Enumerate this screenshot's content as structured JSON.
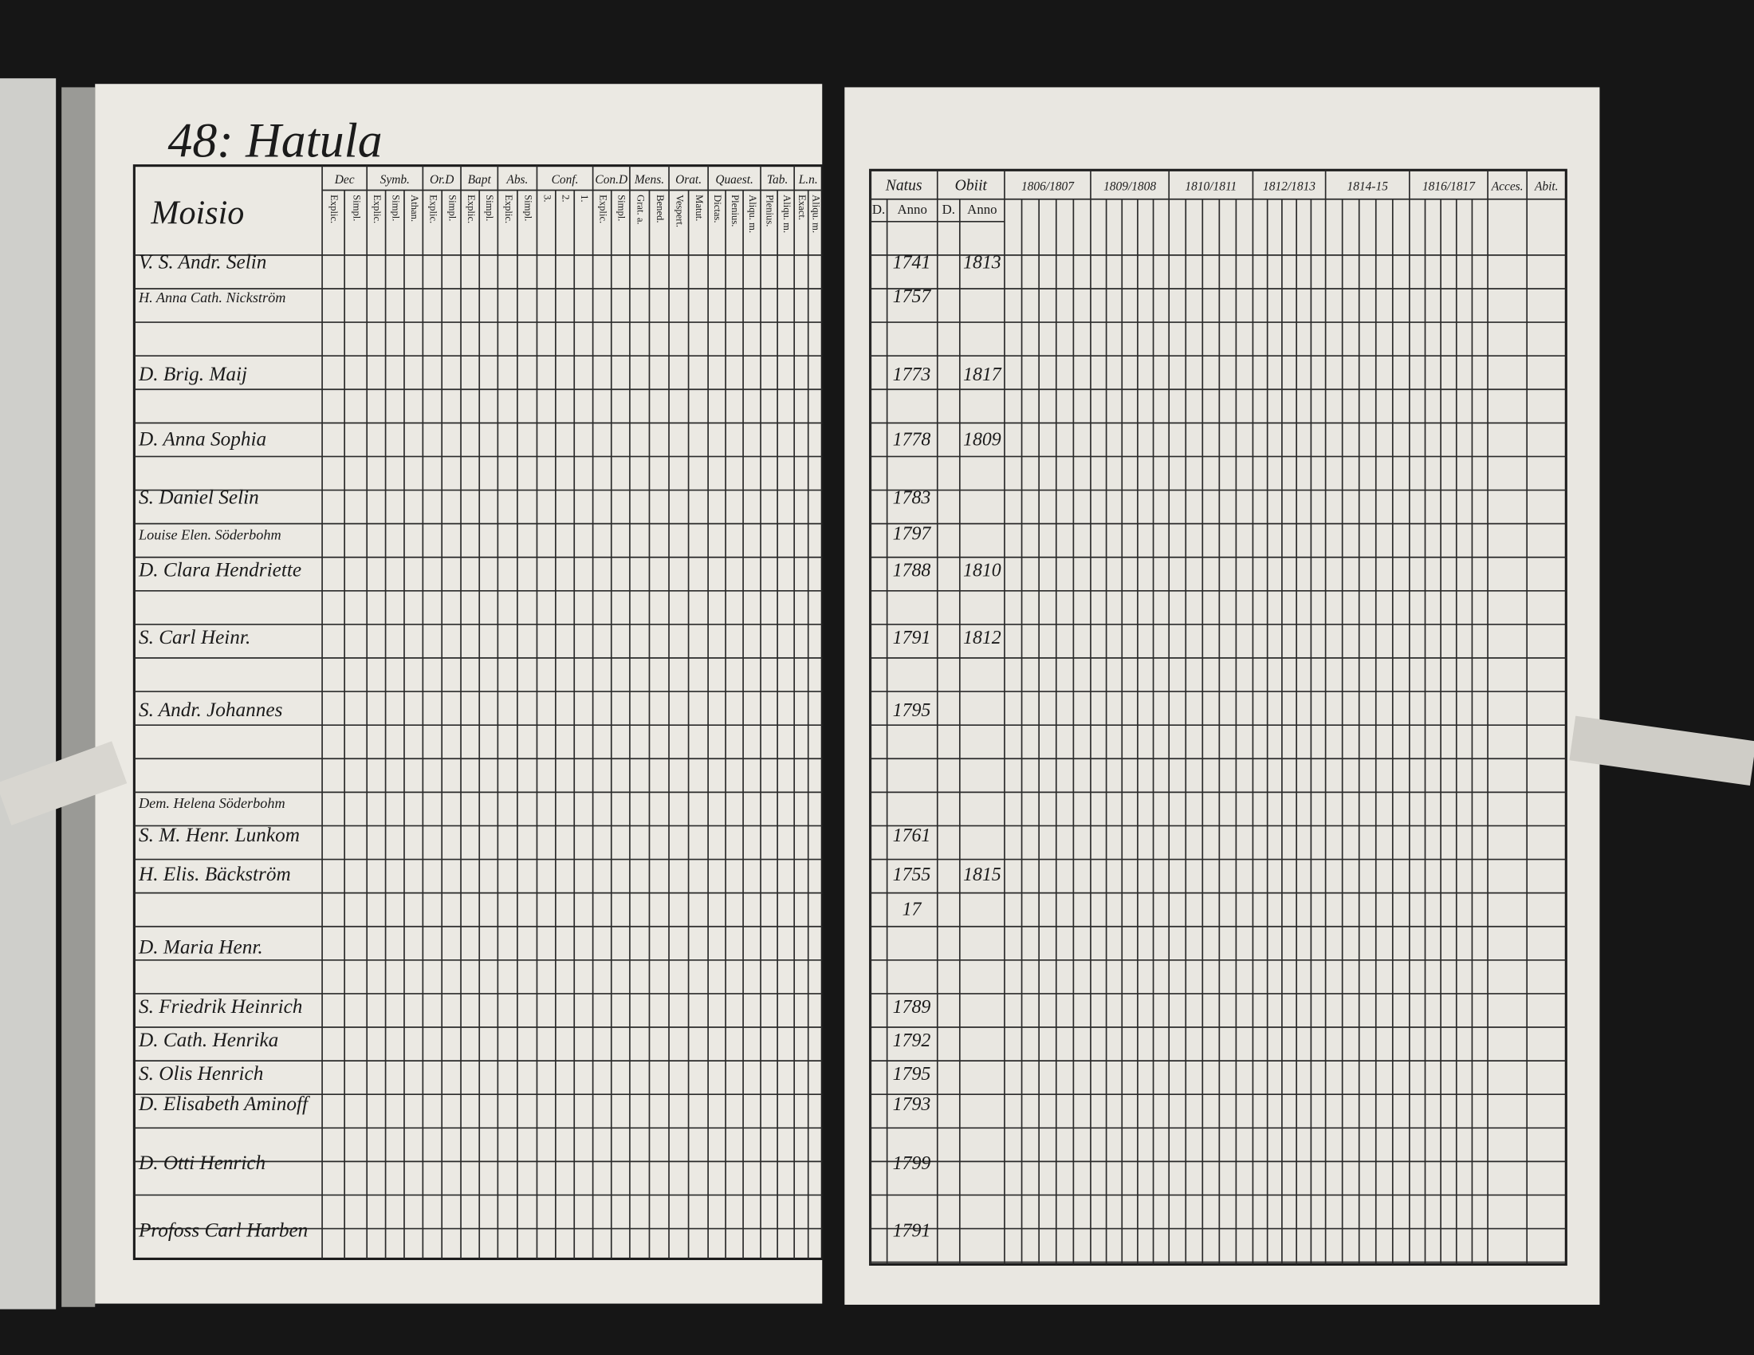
{
  "header": {
    "title": "48: Hatula"
  },
  "left_table": {
    "name_header": "Moisio",
    "columns": [
      {
        "label": "Dec",
        "sub": [
          "Explic.",
          "Simpl."
        ]
      },
      {
        "label": "Symb.",
        "sub": [
          "Explic.",
          "Simpl.",
          "Athan."
        ]
      },
      {
        "label": "Or.D",
        "sub": [
          "Explic.",
          "Simpl."
        ]
      },
      {
        "label": "Bapt",
        "sub": [
          "Explic.",
          "Simpl."
        ]
      },
      {
        "label": "Abs.",
        "sub": [
          "Explic.",
          "Simpl."
        ]
      },
      {
        "label": "Conf.",
        "sub": [
          "3.",
          "2.",
          "1."
        ]
      },
      {
        "label": "Con.D",
        "sub": [
          "Explic.",
          "Simpl."
        ]
      },
      {
        "label": "Mens.",
        "sub": [
          "Grat. a.",
          "Bened."
        ]
      },
      {
        "label": "Orat.",
        "sub": [
          "Vespert.",
          "Matut."
        ]
      },
      {
        "label": "Quaest.",
        "sub": [
          "Dictas.",
          "Plenius.",
          "Aliqu. m."
        ]
      },
      {
        "label": "Tab.",
        "sub": [
          "Plenius.",
          "Aliqu. m."
        ]
      },
      {
        "label": "L.n.",
        "sub": [
          "Exact.",
          "Aliqu. m."
        ]
      }
    ]
  },
  "right_table": {
    "columns": [
      {
        "label": "Natus",
        "sub": [
          "D.",
          "Anno"
        ]
      },
      {
        "label": "Obiit",
        "sub": [
          "D.",
          "Anno"
        ]
      },
      {
        "label": "1806/1807"
      },
      {
        "label": "1809/1808"
      },
      {
        "label": "1810/1811"
      },
      {
        "label": "1812/1813"
      },
      {
        "label": "1814-15"
      },
      {
        "label": "1816/1817"
      },
      {
        "label": "Acces."
      },
      {
        "label": "Abit."
      }
    ]
  },
  "rows": [
    {
      "name": "V. S. Andr. Selin",
      "natus": "1741",
      "obiit": "1813"
    },
    {
      "name": "H. Anna Cath. Nickström",
      "natus": "1757"
    },
    {
      "name": "D. Brig. Maij",
      "natus": "1773",
      "obiit": "1817"
    },
    {
      "name": "D. Anna Sophia",
      "natus": "1778",
      "obiit": "1809"
    },
    {
      "name": "S. Daniel Selin",
      "natus": "1783"
    },
    {
      "name": "Louise Elen. Söderbohm",
      "natus": "1797"
    },
    {
      "name": "D. Clara Hendriette",
      "natus": "1788",
      "obiit": "1810"
    },
    {
      "name": "S. Carl Heinr.",
      "natus": "1791",
      "obiit": "1812"
    },
    {
      "name": "S. Andr. Johannes",
      "natus": "1795"
    },
    {
      "name": "Dem. Helena Söderbohm"
    },
    {
      "name": "S. M. Henr. Lunkom",
      "natus": "1761"
    },
    {
      "name": "H. Elis. Bäckström",
      "natus": "1755",
      "obiit": "1815"
    },
    {
      "natus": "17"
    },
    {
      "name": "D. Maria Henr."
    },
    {
      "name": "S. Friedrik Heinrich",
      "natus": "1789"
    },
    {
      "name": "D. Cath. Henrika",
      "natus": "1792"
    },
    {
      "name": "S. Olis Henrich",
      "natus": "1795"
    },
    {
      "name": "D. Elisabeth Aminoff",
      "natus": "1793"
    },
    {
      "name": "D. Otti Henrich",
      "natus": "1799"
    },
    {
      "name": "Profoss Carl Harben",
      "natus": "1791"
    }
  ]
}
